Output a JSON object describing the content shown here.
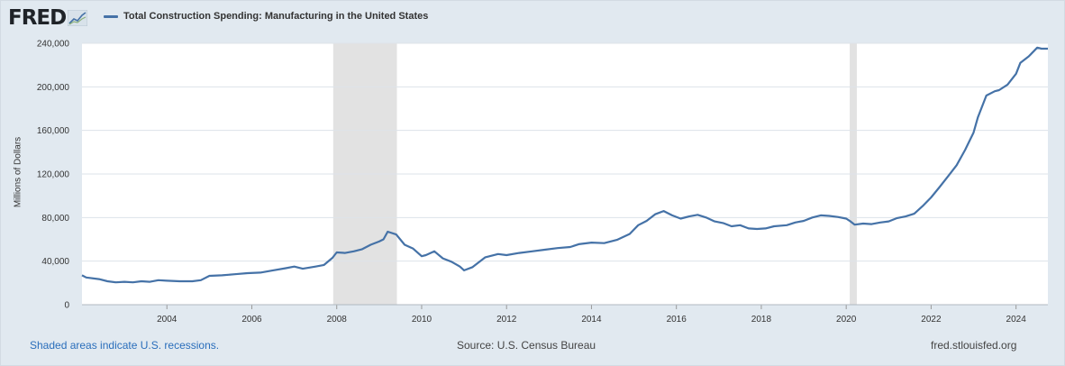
{
  "brand": {
    "logo_text": "FRED"
  },
  "footer": {
    "recession_note": "Shaded areas indicate U.S. recessions.",
    "source": "Source: U.S. Census Bureau",
    "site": "fred.stlouisfed.org"
  },
  "colors": {
    "series": "#4572a7",
    "recession": "#e2e2e2",
    "grid": "#dde3e9",
    "background": "#e1e9f0",
    "plot": "#ffffff"
  },
  "chart_data": {
    "type": "line",
    "title": "",
    "xlabel": "",
    "ylabel": "Millions of Dollars",
    "xlim": [
      2002.0,
      2024.75
    ],
    "ylim": [
      0,
      240000
    ],
    "yticks": [
      0,
      40000,
      80000,
      120000,
      160000,
      200000,
      240000
    ],
    "ytick_labels": [
      "0",
      "40,000",
      "80,000",
      "120,000",
      "160,000",
      "200,000",
      "240,000"
    ],
    "xticks": [
      2004,
      2006,
      2008,
      2010,
      2012,
      2014,
      2016,
      2018,
      2020,
      2022,
      2024
    ],
    "xtick_labels": [
      "2004",
      "2006",
      "2008",
      "2010",
      "2012",
      "2014",
      "2016",
      "2018",
      "2020",
      "2022",
      "2024"
    ],
    "grid": true,
    "legend": "top-left",
    "recessions": [
      [
        2007.917,
        2009.417
      ],
      [
        2020.083,
        2020.25
      ]
    ],
    "series": [
      {
        "name": "Total Construction Spending: Manufacturing in the United States",
        "x": [
          2002.0,
          2002.1,
          2002.4,
          2002.6,
          2002.8,
          2003.0,
          2003.2,
          2003.4,
          2003.6,
          2003.8,
          2004.0,
          2004.3,
          2004.6,
          2004.8,
          2005.0,
          2005.3,
          2005.6,
          2005.9,
          2006.2,
          2006.5,
          2006.8,
          2007.0,
          2007.2,
          2007.5,
          2007.7,
          2007.9,
          2008.0,
          2008.2,
          2008.4,
          2008.6,
          2008.8,
          2009.0,
          2009.1,
          2009.2,
          2009.4,
          2009.6,
          2009.8,
          2010.0,
          2010.1,
          2010.3,
          2010.5,
          2010.7,
          2010.9,
          2011.0,
          2011.2,
          2011.5,
          2011.8,
          2012.0,
          2012.3,
          2012.6,
          2012.9,
          2013.2,
          2013.5,
          2013.7,
          2014.0,
          2014.3,
          2014.6,
          2014.9,
          2015.1,
          2015.3,
          2015.5,
          2015.7,
          2015.9,
          2016.1,
          2016.3,
          2016.5,
          2016.7,
          2016.9,
          2017.1,
          2017.3,
          2017.5,
          2017.7,
          2017.9,
          2018.1,
          2018.3,
          2018.6,
          2018.8,
          2019.0,
          2019.2,
          2019.4,
          2019.6,
          2019.8,
          2020.0,
          2020.1,
          2020.2,
          2020.4,
          2020.6,
          2020.8,
          2021.0,
          2021.2,
          2021.4,
          2021.6,
          2021.8,
          2022.0,
          2022.2,
          2022.4,
          2022.6,
          2022.8,
          2023.0,
          2023.1,
          2023.3,
          2023.5,
          2023.6,
          2023.8,
          2024.0,
          2024.1,
          2024.3,
          2024.5,
          2024.6,
          2024.75
        ],
        "values": [
          27000,
          25000,
          23500,
          21500,
          20500,
          21000,
          20500,
          21500,
          21000,
          22500,
          22000,
          21500,
          21500,
          22500,
          26500,
          27000,
          28000,
          29000,
          29500,
          31500,
          33500,
          35000,
          33000,
          35000,
          36500,
          43000,
          48000,
          47500,
          49000,
          51000,
          55000,
          58000,
          60000,
          67000,
          64500,
          55000,
          51500,
          44500,
          45500,
          49000,
          42500,
          39500,
          35000,
          31500,
          34500,
          43500,
          46500,
          45500,
          47500,
          49000,
          50500,
          52000,
          53000,
          55500,
          57000,
          56500,
          59500,
          65000,
          73000,
          77000,
          83000,
          86000,
          82000,
          79000,
          81000,
          82500,
          80000,
          76500,
          75000,
          72000,
          73000,
          70000,
          69500,
          70000,
          72000,
          73000,
          75500,
          77000,
          80000,
          82000,
          81500,
          80500,
          79000,
          76500,
          73500,
          74500,
          74000,
          75500,
          76500,
          79500,
          81000,
          83500,
          90500,
          98500,
          108000,
          118000,
          128000,
          142000,
          158000,
          172000,
          192000,
          196000,
          197000,
          202000,
          212000,
          222000,
          228000,
          236000,
          235000,
          235000
        ]
      }
    ]
  }
}
